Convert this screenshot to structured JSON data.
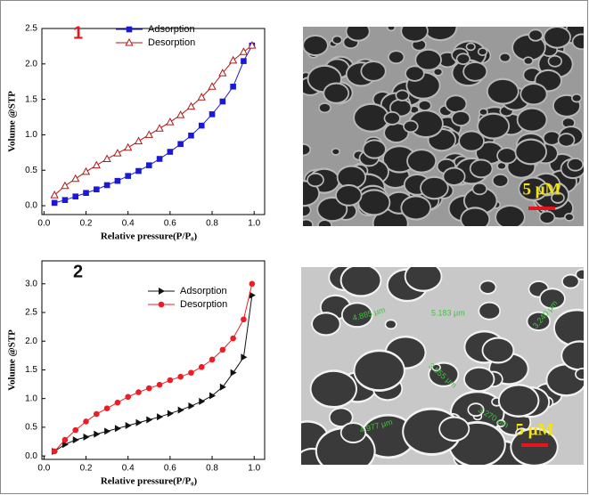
{
  "chart_data": [
    {
      "type": "line",
      "annotation": "1",
      "annotation_color": "#e8141b",
      "x_label": "Relative pressure(P/P₀)",
      "y_label": "Volume @STP",
      "x": [
        0.05,
        0.1,
        0.15,
        0.2,
        0.25,
        0.3,
        0.35,
        0.4,
        0.45,
        0.5,
        0.55,
        0.6,
        0.65,
        0.7,
        0.75,
        0.8,
        0.85,
        0.9,
        0.95,
        0.99
      ],
      "series": [
        {
          "name": "Adsorption",
          "color": "#1a1ad6",
          "marker": "square",
          "values": [
            0.04,
            0.08,
            0.13,
            0.18,
            0.23,
            0.29,
            0.35,
            0.42,
            0.49,
            0.57,
            0.66,
            0.76,
            0.87,
            0.99,
            1.13,
            1.29,
            1.47,
            1.68,
            2.04,
            2.26
          ]
        },
        {
          "name": "Desorption",
          "color": "#b01818",
          "marker": "triangle-open",
          "values": [
            0.15,
            0.28,
            0.38,
            0.48,
            0.57,
            0.66,
            0.74,
            0.82,
            0.91,
            1.0,
            1.09,
            1.18,
            1.28,
            1.4,
            1.53,
            1.68,
            1.87,
            2.05,
            2.17,
            2.26
          ]
        }
      ],
      "xlim": [
        -0.01,
        1.05
      ],
      "ylim": [
        -0.125,
        2.5
      ],
      "xticks": [
        {
          "value": 0,
          "label": "0.0"
        },
        0.2,
        0.4,
        0.6,
        0.8,
        {
          "value": 1,
          "label": "1.0"
        }
      ],
      "yticks": [
        {
          "value": 0,
          "label": "0.0"
        },
        0.5,
        {
          "value": 1,
          "label": "1.0"
        },
        1.5,
        {
          "value": 2,
          "label": "2.0"
        },
        2.5
      ]
    },
    {
      "type": "line",
      "annotation": "2",
      "annotation_color": "#111111",
      "x_label": "Relative pressure(P/P₀)",
      "y_label": "Volume @STP",
      "x": [
        0.05,
        0.1,
        0.15,
        0.2,
        0.25,
        0.3,
        0.35,
        0.4,
        0.45,
        0.5,
        0.55,
        0.6,
        0.65,
        0.7,
        0.75,
        0.8,
        0.85,
        0.9,
        0.95,
        0.99
      ],
      "series": [
        {
          "name": "Adsorption",
          "color": "#111111",
          "marker": "triangle-right",
          "values": [
            0.08,
            0.2,
            0.28,
            0.33,
            0.38,
            0.43,
            0.48,
            0.53,
            0.58,
            0.63,
            0.68,
            0.74,
            0.8,
            0.87,
            0.95,
            1.05,
            1.2,
            1.45,
            1.72,
            2.8
          ]
        },
        {
          "name": "Desorption",
          "color": "#ee1c24",
          "marker": "circle",
          "values": [
            0.08,
            0.28,
            0.45,
            0.6,
            0.73,
            0.83,
            0.93,
            1.03,
            1.11,
            1.18,
            1.24,
            1.32,
            1.38,
            1.45,
            1.55,
            1.68,
            1.85,
            2.05,
            2.38,
            3.0
          ]
        }
      ],
      "xlim": [
        -0.01,
        1.05
      ],
      "ylim": [
        -0.06,
        3.4
      ],
      "xticks": [
        {
          "value": 0,
          "label": "0.0"
        },
        0.2,
        0.4,
        0.6,
        0.8,
        {
          "value": 1,
          "label": "1.0"
        }
      ],
      "yticks": [
        {
          "value": 0,
          "label": "0.0"
        },
        0.5,
        {
          "value": 1,
          "label": "1.0"
        },
        1.5,
        {
          "value": 2,
          "label": "2.0"
        },
        2.5,
        {
          "value": 3,
          "label": "3.0"
        }
      ]
    }
  ],
  "images": [
    {
      "scale_bar": "5 μM"
    },
    {
      "scale_bar": "5 μM",
      "measurements": [
        "4.885 μm",
        "5.183 μm",
        "3.240 μm",
        "3.955 μm",
        "3.270 μm",
        "4.977 μm"
      ]
    }
  ]
}
